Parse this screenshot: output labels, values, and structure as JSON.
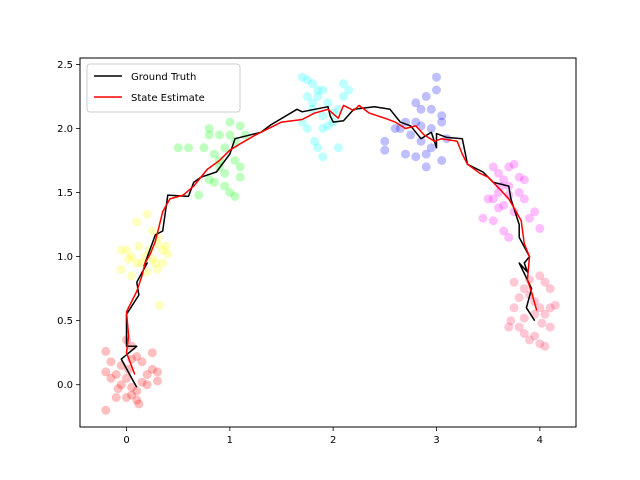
{
  "chart_data": {
    "type": "line",
    "title": "",
    "xlabel": "",
    "ylabel": "",
    "xlim": [
      -0.45,
      4.35
    ],
    "ylim": [
      -0.33,
      2.55
    ],
    "x_ticks": [
      "0",
      "1",
      "2",
      "3",
      "4"
    ],
    "y_ticks": [
      "0.0",
      "0.5",
      "1.0",
      "1.5",
      "2.0",
      "2.5"
    ],
    "grid": false,
    "legend": {
      "placement": "top-left",
      "entries": [
        {
          "label": "Ground Truth",
          "color": "#000000"
        },
        {
          "label": "State Estimate",
          "color": "#ff0000"
        }
      ]
    },
    "series": [
      {
        "name": "Ground Truth",
        "color": "#000000",
        "points": [
          [
            0.1,
            -0.02
          ],
          [
            0.05,
            0.05
          ],
          [
            -0.05,
            0.2
          ],
          [
            0.1,
            0.3
          ],
          [
            0.0,
            0.3
          ],
          [
            0.0,
            0.55
          ],
          [
            0.12,
            0.7
          ],
          [
            0.1,
            0.8
          ],
          [
            0.2,
            0.95
          ],
          [
            0.17,
            0.93
          ],
          [
            0.28,
            1.17
          ],
          [
            0.35,
            1.2
          ],
          [
            0.4,
            1.48
          ],
          [
            0.6,
            1.47
          ],
          [
            0.65,
            1.58
          ],
          [
            0.72,
            1.62
          ],
          [
            0.87,
            1.66
          ],
          [
            1.0,
            1.8
          ],
          [
            1.05,
            1.92
          ],
          [
            1.3,
            1.97
          ],
          [
            1.4,
            2.03
          ],
          [
            1.65,
            2.15
          ],
          [
            1.7,
            2.13
          ],
          [
            1.95,
            2.17
          ],
          [
            1.97,
            2.1
          ],
          [
            2.0,
            2.05
          ],
          [
            2.1,
            2.06
          ],
          [
            2.2,
            2.15
          ],
          [
            2.4,
            2.17
          ],
          [
            2.55,
            2.15
          ],
          [
            2.65,
            2.05
          ],
          [
            2.75,
            2.02
          ],
          [
            2.85,
            1.92
          ],
          [
            2.95,
            1.97
          ],
          [
            3.0,
            1.85
          ],
          [
            3.0,
            1.96
          ],
          [
            3.1,
            1.93
          ],
          [
            3.25,
            1.92
          ],
          [
            3.3,
            1.72
          ],
          [
            3.45,
            1.66
          ],
          [
            3.55,
            1.58
          ],
          [
            3.7,
            1.55
          ],
          [
            3.72,
            1.45
          ],
          [
            3.8,
            1.25
          ],
          [
            3.8,
            1.15
          ],
          [
            3.9,
            1.0
          ],
          [
            3.85,
            0.95
          ],
          [
            3.88,
            0.88
          ],
          [
            3.8,
            0.95
          ],
          [
            3.92,
            0.75
          ],
          [
            3.87,
            0.6
          ],
          [
            3.95,
            0.5
          ]
        ]
      },
      {
        "name": "State Estimate",
        "color": "#ff0000",
        "points": [
          [
            0.08,
            0.08
          ],
          [
            0.0,
            0.25
          ],
          [
            0.02,
            0.38
          ],
          [
            0.0,
            0.57
          ],
          [
            0.05,
            0.65
          ],
          [
            0.1,
            0.73
          ],
          [
            0.15,
            0.85
          ],
          [
            0.18,
            0.95
          ],
          [
            0.23,
            1.02
          ],
          [
            0.28,
            1.12
          ],
          [
            0.35,
            1.35
          ],
          [
            0.42,
            1.45
          ],
          [
            0.55,
            1.48
          ],
          [
            0.65,
            1.55
          ],
          [
            0.78,
            1.68
          ],
          [
            0.9,
            1.75
          ],
          [
            1.0,
            1.83
          ],
          [
            1.1,
            1.88
          ],
          [
            1.25,
            1.95
          ],
          [
            1.5,
            2.05
          ],
          [
            1.7,
            2.07
          ],
          [
            1.82,
            2.12
          ],
          [
            1.95,
            2.15
          ],
          [
            2.05,
            2.08
          ],
          [
            2.1,
            2.18
          ],
          [
            2.2,
            2.14
          ],
          [
            2.25,
            2.18
          ],
          [
            2.35,
            2.12
          ],
          [
            2.5,
            2.08
          ],
          [
            2.6,
            2.05
          ],
          [
            2.7,
            2.0
          ],
          [
            2.8,
            2.02
          ],
          [
            2.88,
            1.95
          ],
          [
            2.98,
            1.9
          ],
          [
            3.05,
            1.92
          ],
          [
            3.2,
            1.9
          ],
          [
            3.25,
            1.8
          ],
          [
            3.3,
            1.72
          ],
          [
            3.42,
            1.65
          ],
          [
            3.5,
            1.62
          ],
          [
            3.62,
            1.52
          ],
          [
            3.7,
            1.45
          ],
          [
            3.75,
            1.38
          ],
          [
            3.82,
            1.28
          ],
          [
            3.85,
            1.1
          ],
          [
            3.9,
            1.0
          ],
          [
            3.88,
            0.82
          ],
          [
            3.92,
            0.72
          ],
          [
            3.97,
            0.58
          ]
        ]
      }
    ],
    "clusters": [
      {
        "color": "#ff0000",
        "points": [
          [
            -0.2,
            0.26
          ],
          [
            -0.15,
            0.18
          ],
          [
            -0.2,
            0.1
          ],
          [
            -0.1,
            0.08
          ],
          [
            -0.05,
            0.0
          ],
          [
            0.0,
            0.05
          ],
          [
            0.05,
            -0.02
          ],
          [
            0.1,
            -0.05
          ],
          [
            0.15,
            0.02
          ],
          [
            0.2,
            0.08
          ],
          [
            0.25,
            0.12
          ],
          [
            0.3,
            0.1
          ],
          [
            0.15,
            0.18
          ],
          [
            0.1,
            0.22
          ],
          [
            0.05,
            0.2
          ],
          [
            -0.05,
            0.15
          ],
          [
            0.0,
            -0.1
          ],
          [
            0.05,
            -0.08
          ],
          [
            0.1,
            -0.12
          ],
          [
            -0.1,
            -0.1
          ],
          [
            0.0,
            0.35
          ],
          [
            0.05,
            0.3
          ],
          [
            -0.15,
            0.05
          ],
          [
            0.2,
            0.0
          ],
          [
            0.12,
            -0.15
          ],
          [
            -0.2,
            -0.2
          ],
          [
            0.25,
            0.25
          ],
          [
            0.3,
            0.03
          ],
          [
            0.02,
            0.12
          ],
          [
            -0.08,
            -0.03
          ]
        ]
      },
      {
        "color": "#ffff00",
        "points": [
          [
            0.1,
            1.27
          ],
          [
            0.2,
            1.33
          ],
          [
            0.25,
            1.2
          ],
          [
            0.3,
            1.1
          ],
          [
            0.35,
            1.05
          ],
          [
            0.4,
            1.02
          ],
          [
            0.35,
            0.95
          ],
          [
            0.3,
            0.9
          ],
          [
            0.2,
            0.88
          ],
          [
            0.15,
            0.95
          ],
          [
            0.05,
            1.0
          ],
          [
            0.0,
            1.05
          ],
          [
            -0.05,
            1.05
          ],
          [
            -0.05,
            0.9
          ],
          [
            0.05,
            0.85
          ],
          [
            0.1,
            0.95
          ],
          [
            0.25,
            0.98
          ],
          [
            0.3,
            1.15
          ],
          [
            0.38,
            1.08
          ],
          [
            0.22,
            1.05
          ],
          [
            0.12,
            1.08
          ],
          [
            0.02,
            0.98
          ],
          [
            0.32,
            0.62
          ],
          [
            0.28,
            0.95
          ],
          [
            0.18,
            1.0
          ]
        ]
      },
      {
        "color": "#00ff00",
        "points": [
          [
            0.7,
            1.48
          ],
          [
            0.8,
            1.6
          ],
          [
            0.9,
            1.7
          ],
          [
            0.95,
            1.85
          ],
          [
            1.0,
            1.95
          ],
          [
            1.05,
            1.9
          ],
          [
            0.85,
            1.8
          ],
          [
            0.75,
            1.85
          ],
          [
            0.8,
            1.95
          ],
          [
            0.9,
            1.95
          ],
          [
            1.0,
            2.05
          ],
          [
            1.1,
            2.02
          ],
          [
            1.15,
            1.95
          ],
          [
            1.05,
            1.75
          ],
          [
            1.1,
            1.62
          ],
          [
            0.95,
            1.55
          ],
          [
            0.85,
            1.58
          ],
          [
            1.0,
            1.5
          ],
          [
            1.05,
            1.47
          ],
          [
            0.6,
            1.85
          ],
          [
            0.5,
            1.85
          ],
          [
            0.8,
            2.0
          ],
          [
            0.9,
            1.75
          ],
          [
            1.1,
            1.7
          ],
          [
            0.95,
            1.65
          ]
        ]
      },
      {
        "color": "#00ffff",
        "points": [
          [
            1.7,
            2.4
          ],
          [
            1.8,
            2.35
          ],
          [
            1.9,
            2.3
          ],
          [
            1.85,
            2.25
          ],
          [
            1.75,
            2.25
          ],
          [
            1.8,
            2.15
          ],
          [
            1.9,
            2.1
          ],
          [
            2.0,
            2.05
          ],
          [
            2.05,
            2.15
          ],
          [
            2.1,
            2.25
          ],
          [
            2.1,
            2.35
          ],
          [
            2.15,
            2.3
          ],
          [
            1.95,
            2.02
          ],
          [
            1.85,
            1.85
          ],
          [
            1.9,
            1.78
          ],
          [
            2.05,
            1.85
          ],
          [
            1.7,
            2.05
          ],
          [
            1.75,
            2.0
          ],
          [
            1.8,
            2.2
          ],
          [
            1.95,
            2.2
          ],
          [
            1.85,
            2.3
          ],
          [
            1.75,
            2.38
          ],
          [
            2.0,
            2.12
          ],
          [
            1.9,
            2.0
          ],
          [
            1.82,
            1.9
          ]
        ]
      },
      {
        "color": "#0000ff",
        "points": [
          [
            2.5,
            1.9
          ],
          [
            2.5,
            1.83
          ],
          [
            2.65,
            2.0
          ],
          [
            2.7,
            2.05
          ],
          [
            2.8,
            2.05
          ],
          [
            2.85,
            2.15
          ],
          [
            2.95,
            2.15
          ],
          [
            3.0,
            2.3
          ],
          [
            3.0,
            2.4
          ],
          [
            2.9,
            2.25
          ],
          [
            2.8,
            2.2
          ],
          [
            2.75,
            1.95
          ],
          [
            2.85,
            1.9
          ],
          [
            2.9,
            1.8
          ],
          [
            3.05,
            1.75
          ],
          [
            3.1,
            1.92
          ],
          [
            2.95,
            2.0
          ],
          [
            2.85,
            2.02
          ],
          [
            2.7,
            1.8
          ],
          [
            2.8,
            1.78
          ],
          [
            2.9,
            1.7
          ],
          [
            3.05,
            2.1
          ],
          [
            2.6,
            2.0
          ],
          [
            2.95,
            1.85
          ],
          [
            3.05,
            2.05
          ]
        ]
      },
      {
        "color": "#ff00ff",
        "points": [
          [
            3.55,
            1.7
          ],
          [
            3.6,
            1.65
          ],
          [
            3.65,
            1.6
          ],
          [
            3.7,
            1.7
          ],
          [
            3.75,
            1.72
          ],
          [
            3.8,
            1.62
          ],
          [
            3.7,
            1.55
          ],
          [
            3.6,
            1.5
          ],
          [
            3.55,
            1.45
          ],
          [
            3.6,
            1.38
          ],
          [
            3.65,
            1.4
          ],
          [
            3.5,
            1.45
          ],
          [
            3.45,
            1.3
          ],
          [
            3.55,
            1.28
          ],
          [
            3.65,
            1.2
          ],
          [
            3.7,
            1.15
          ],
          [
            3.8,
            1.5
          ],
          [
            3.85,
            1.45
          ],
          [
            3.85,
            1.6
          ],
          [
            3.9,
            1.3
          ],
          [
            3.95,
            1.35
          ],
          [
            4.0,
            1.22
          ],
          [
            3.75,
            1.35
          ],
          [
            3.62,
            1.55
          ],
          [
            3.7,
            1.48
          ]
        ]
      },
      {
        "color": "#ff2255",
        "points": [
          [
            3.75,
            0.8
          ],
          [
            3.85,
            0.75
          ],
          [
            3.9,
            0.7
          ],
          [
            3.95,
            0.65
          ],
          [
            4.0,
            0.6
          ],
          [
            4.05,
            0.55
          ],
          [
            4.1,
            0.6
          ],
          [
            4.15,
            0.62
          ],
          [
            4.1,
            0.75
          ],
          [
            4.05,
            0.8
          ],
          [
            4.0,
            0.85
          ],
          [
            3.9,
            0.82
          ],
          [
            3.8,
            0.68
          ],
          [
            3.75,
            0.6
          ],
          [
            3.72,
            0.5
          ],
          [
            3.8,
            0.45
          ],
          [
            3.85,
            0.4
          ],
          [
            3.95,
            0.38
          ],
          [
            4.0,
            0.32
          ],
          [
            4.05,
            0.3
          ],
          [
            3.7,
            0.45
          ],
          [
            3.85,
            0.52
          ],
          [
            4.1,
            0.45
          ],
          [
            3.95,
            0.55
          ],
          [
            4.02,
            0.48
          ],
          [
            3.9,
            0.35
          ]
        ]
      }
    ]
  }
}
